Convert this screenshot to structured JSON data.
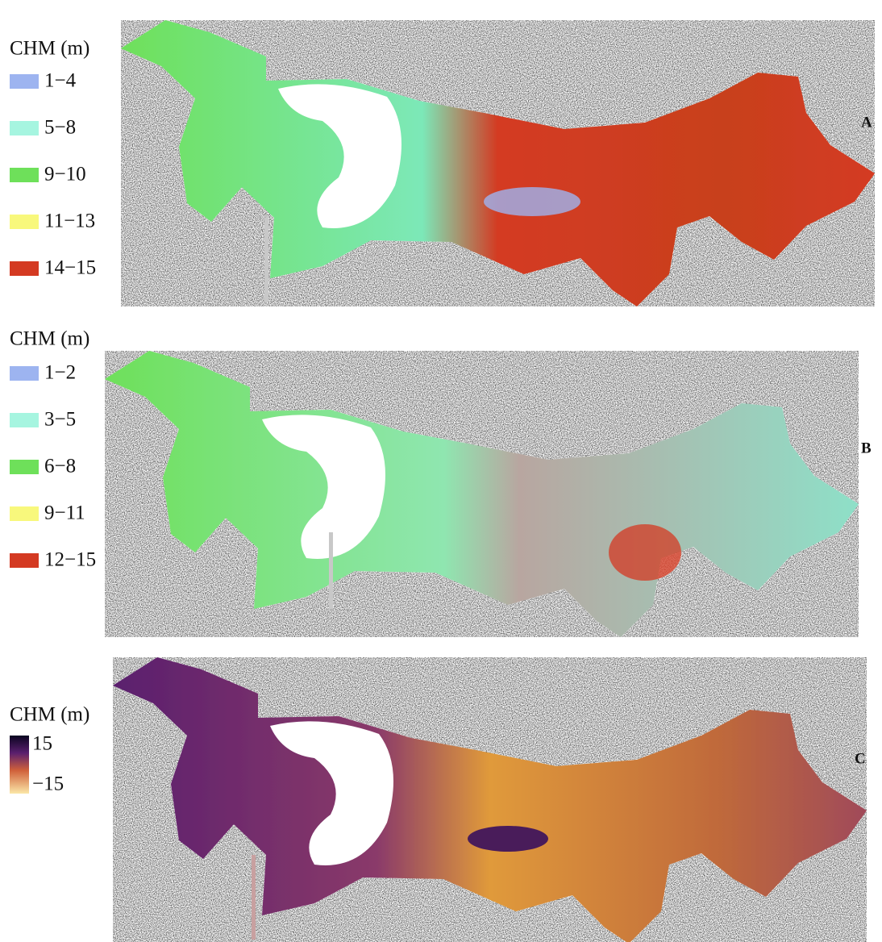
{
  "panels": [
    {
      "label": "A",
      "legend": {
        "title": "CHM (m)",
        "items": [
          {
            "label": "1−4",
            "color": "#9db4f0"
          },
          {
            "label": "5−8",
            "color": "#a6f5e0"
          },
          {
            "label": "9−10",
            "color": "#6ee05a"
          },
          {
            "label": "11−13",
            "color": "#f8f87c"
          },
          {
            "label": "14−15",
            "color": "#d43a22"
          }
        ]
      }
    },
    {
      "label": "B",
      "legend": {
        "title": "CHM (m)",
        "items": [
          {
            "label": "1−2",
            "color": "#9db4f0"
          },
          {
            "label": "3−5",
            "color": "#a6f5e0"
          },
          {
            "label": "6−8",
            "color": "#6ee05a"
          },
          {
            "label": "9−11",
            "color": "#f8f87c"
          },
          {
            "label": "12−15",
            "color": "#d43a22"
          }
        ]
      }
    },
    {
      "label": "C",
      "legend": {
        "title": "CHM (m)",
        "max_label": "15",
        "min_label": "−15"
      }
    }
  ]
}
